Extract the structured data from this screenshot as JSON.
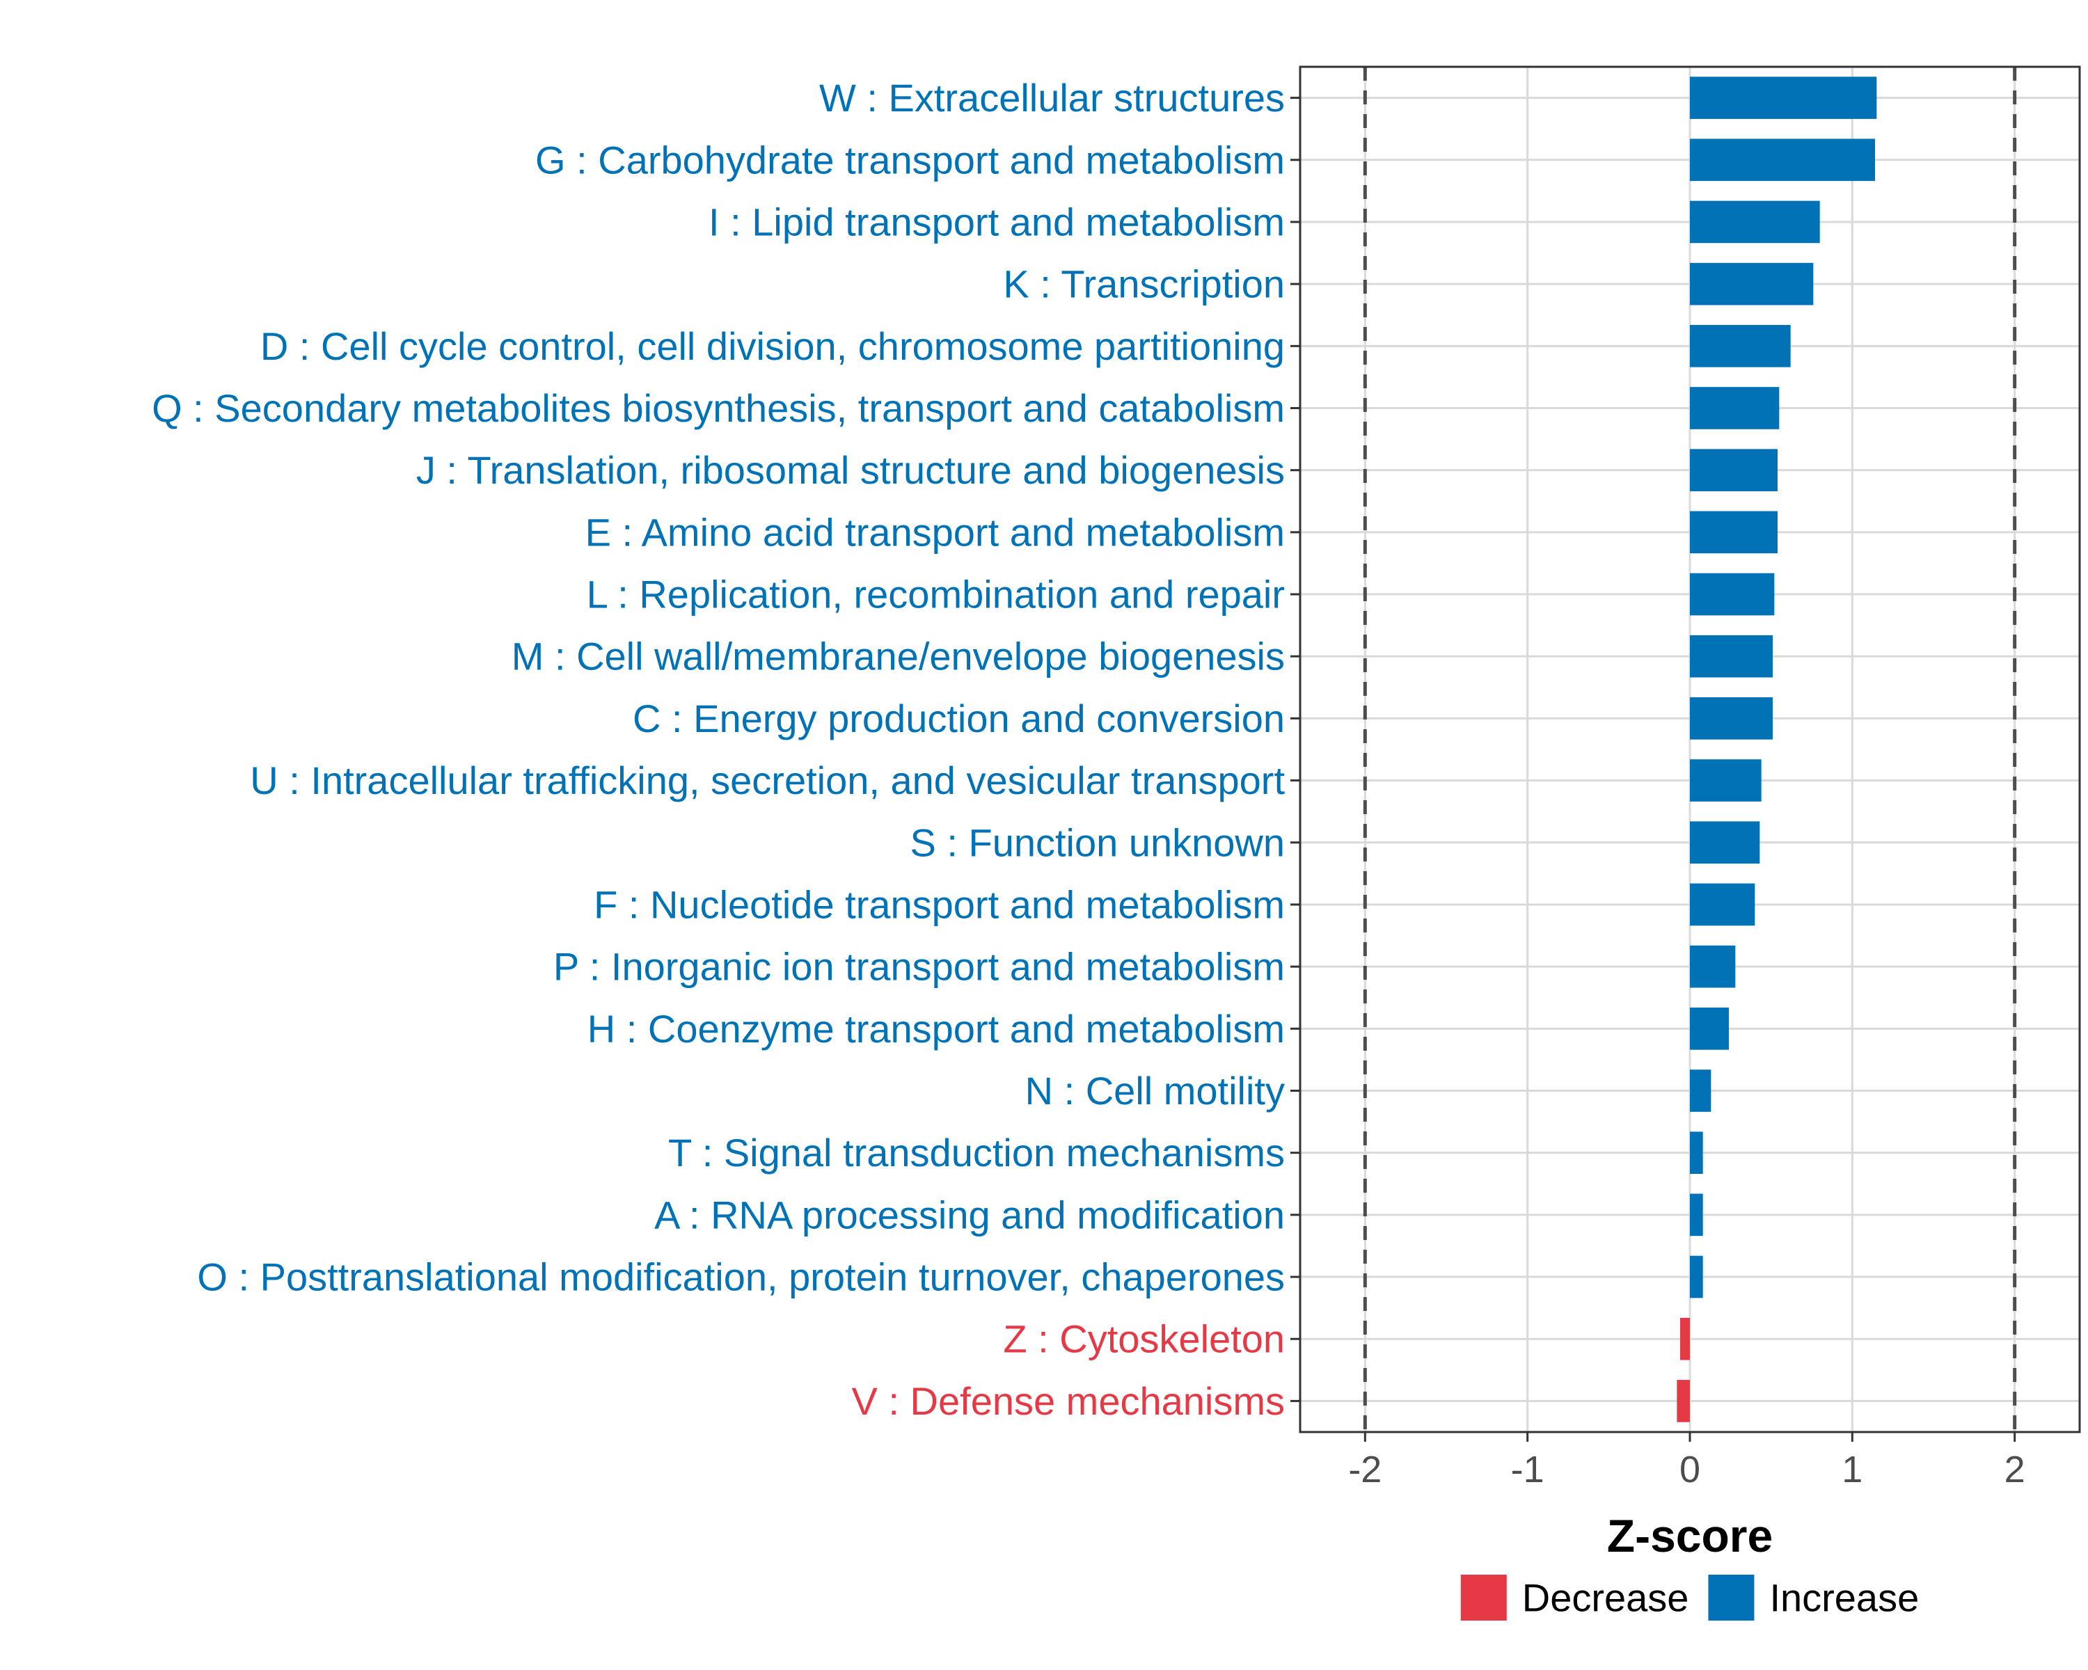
{
  "colors": {
    "increase": "#0072b5",
    "decrease": "#e63946",
    "grid": "#d9d9d9",
    "threshold": "#4d4d4d",
    "panel_border": "#333333"
  },
  "chart_data": {
    "type": "bar",
    "orientation": "horizontal",
    "title": "",
    "xlabel": "Z-score",
    "ylabel": "",
    "xlim": [
      -2.4,
      2.4
    ],
    "x_ticks": [
      {
        "value": -2,
        "label": "-2"
      },
      {
        "value": -1,
        "label": "-1"
      },
      {
        "value": 0,
        "label": "0"
      },
      {
        "value": 1,
        "label": "1"
      },
      {
        "value": 2,
        "label": "2"
      }
    ],
    "reference_lines": [
      -2,
      2
    ],
    "grid": true,
    "legend": {
      "position": "bottom",
      "entries": [
        {
          "label": "Decrease",
          "key": "decrease"
        },
        {
          "label": "Increase",
          "key": "increase"
        }
      ]
    },
    "categories": [
      "W : Extracellular structures",
      "G : Carbohydrate transport and metabolism",
      "I : Lipid transport and metabolism",
      "K : Transcription",
      "D : Cell cycle control, cell division, chromosome partitioning",
      "Q : Secondary metabolites biosynthesis, transport and catabolism",
      "J : Translation, ribosomal structure and biogenesis",
      "E : Amino acid transport and metabolism",
      "L : Replication, recombination and repair",
      "M : Cell wall/membrane/envelope biogenesis",
      "C : Energy production and conversion",
      "U : Intracellular trafficking, secretion, and vesicular transport",
      "S : Function unknown",
      "F : Nucleotide transport and metabolism",
      "P : Inorganic ion transport and metabolism",
      "H : Coenzyme transport and metabolism",
      "N : Cell motility",
      "T : Signal transduction mechanisms",
      "A : RNA processing and modification",
      "O : Posttranslational modification, protein turnover, chaperones",
      "Z : Cytoskeleton",
      "V : Defense mechanisms"
    ],
    "values": [
      1.15,
      1.14,
      0.8,
      0.76,
      0.62,
      0.55,
      0.54,
      0.54,
      0.52,
      0.51,
      0.51,
      0.44,
      0.43,
      0.4,
      0.28,
      0.24,
      0.13,
      0.08,
      0.08,
      0.08,
      -0.06,
      -0.08
    ],
    "groups": [
      "increase",
      "increase",
      "increase",
      "increase",
      "increase",
      "increase",
      "increase",
      "increase",
      "increase",
      "increase",
      "increase",
      "increase",
      "increase",
      "increase",
      "increase",
      "increase",
      "increase",
      "increase",
      "increase",
      "increase",
      "decrease",
      "decrease"
    ]
  }
}
